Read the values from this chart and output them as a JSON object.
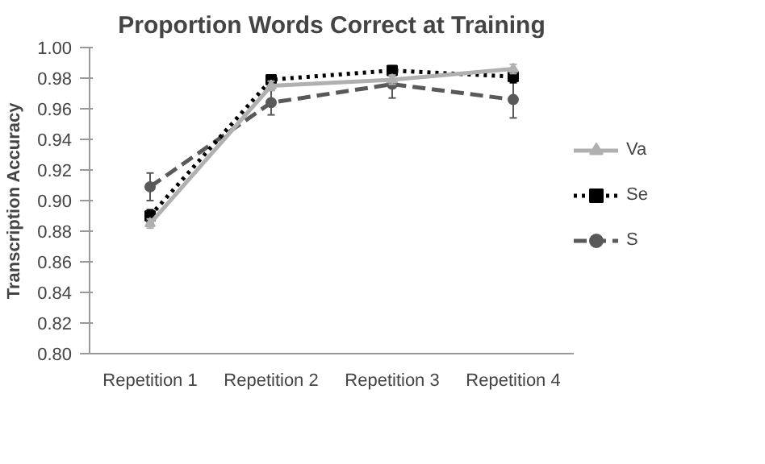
{
  "chart_data": {
    "type": "line",
    "title": "Proportion Words Correct at Training",
    "ylabel": "Transcription Accuracy",
    "categories": [
      "Repetition 1",
      "Repetition 2",
      "Repetition 3",
      "Repetition 4"
    ],
    "ylim": [
      0.8,
      1.0
    ],
    "yticks": [
      {
        "value": 0.8,
        "label": "0.80"
      },
      {
        "value": 0.82,
        "label": "0.82"
      },
      {
        "value": 0.84,
        "label": "0.84"
      },
      {
        "value": 0.86,
        "label": "0.86"
      },
      {
        "value": 0.88,
        "label": "0.88"
      },
      {
        "value": 0.9,
        "label": "0.90"
      },
      {
        "value": 0.92,
        "label": "0.92"
      },
      {
        "value": 0.94,
        "label": "0.94"
      },
      {
        "value": 0.96,
        "label": "0.96"
      },
      {
        "value": 0.98,
        "label": "0.98"
      },
      {
        "value": 1.0,
        "label": "1.00"
      }
    ],
    "grid": false,
    "legend": "right",
    "series": [
      {
        "name": "Va",
        "color": "#b0b0b0",
        "marker": "triangle",
        "line_style": "solid",
        "values": [
          0.885,
          0.975,
          0.979,
          0.986
        ],
        "errors": [
          0.003,
          0.003,
          0.003,
          0.003
        ]
      },
      {
        "name": "Se",
        "color": "#000000",
        "marker": "square",
        "line_style": "dotted",
        "values": [
          0.89,
          0.979,
          0.985,
          0.981
        ],
        "errors": [
          0.004,
          0.003,
          0.003,
          0.004
        ]
      },
      {
        "name": "S",
        "color": "#595959",
        "marker": "circle",
        "line_style": "dashed",
        "values": [
          0.909,
          0.964,
          0.976,
          0.966
        ],
        "errors": [
          0.009,
          0.008,
          0.009,
          0.012
        ]
      }
    ]
  }
}
